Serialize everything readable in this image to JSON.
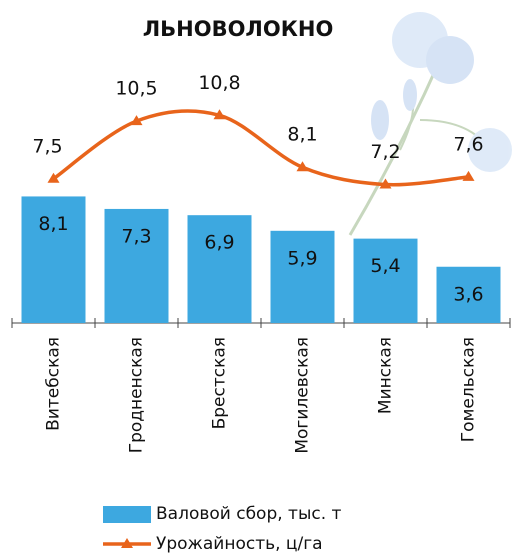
{
  "chart_data": {
    "type": "bar",
    "title": "ЛЬНОВОЛОКНО",
    "categories": [
      "Витебская",
      "Гродненская",
      "Брестская",
      "Могилевская",
      "Минская",
      "Гомельская"
    ],
    "series": [
      {
        "name": "Валовой сбор, тыс. т",
        "type": "bar",
        "color": "#3da8e0",
        "values": [
          8.1,
          7.3,
          6.9,
          5.9,
          5.4,
          3.6
        ],
        "value_labels": [
          "8,1",
          "7,3",
          "6,9",
          "5,9",
          "5,4",
          "3,6"
        ]
      },
      {
        "name": "Урожайность, ц/га",
        "type": "line",
        "axis": "y2",
        "color": "#e8641b",
        "values": [
          7.5,
          10.5,
          10.8,
          8.1,
          7.2,
          7.6
        ],
        "value_labels": [
          "7,5",
          "10,5",
          "10,8",
          "8,1",
          "7,2",
          "7,6"
        ]
      }
    ],
    "ylim": [
      0,
      16
    ],
    "y2lim": [
      0,
      13
    ]
  }
}
